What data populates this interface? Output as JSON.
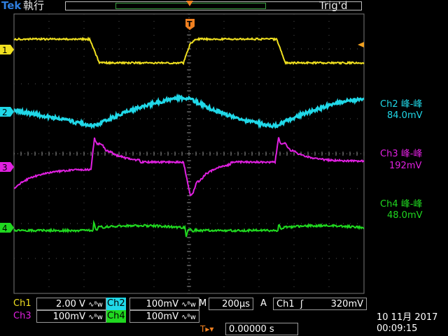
{
  "header": {
    "brand": "Tek",
    "run_state": "執行",
    "trigger_status": "Trig'd"
  },
  "channels": [
    {
      "id": "ch1",
      "marker": "1",
      "color": "#f0e020"
    },
    {
      "id": "ch2",
      "marker": "2",
      "color": "#20d8e8"
    },
    {
      "id": "ch3",
      "marker": "3",
      "color": "#e020e0"
    },
    {
      "id": "ch4",
      "marker": "4",
      "color": "#20d820"
    }
  ],
  "trigger_marker": "T",
  "measurements": [
    {
      "name": "Ch2 峰-峰",
      "value": "84.0mV",
      "color": "#20d8e8"
    },
    {
      "name": "Ch3 峰-峰",
      "value": "192mV",
      "color": "#e020e0"
    },
    {
      "name": "Ch4 峰-峰",
      "value": "48.0mV",
      "color": "#20d820"
    }
  ],
  "settings": {
    "ch1": {
      "label": "Ch1",
      "scale": "2.00 V",
      "bw": "∿ᴮw"
    },
    "ch2": {
      "label": "Ch2",
      "scale": "100mV",
      "bw": "∿ᴮw"
    },
    "ch3": {
      "label": "Ch3",
      "scale": "100mV",
      "bw": "∿ᴮw"
    },
    "ch4": {
      "label": "Ch4",
      "scale": "100mV",
      "bw": "∿ᴮw"
    },
    "timebase": {
      "label": "M",
      "value": "200µs"
    },
    "trigger": {
      "mode": "A",
      "source": "Ch1",
      "slope": "ʃ",
      "level": "320mV"
    },
    "position": {
      "icon": "T▸▾",
      "value": "0.00000 s"
    }
  },
  "datetime": {
    "date": "10 11月 2017",
    "time": "00:09:15"
  }
}
